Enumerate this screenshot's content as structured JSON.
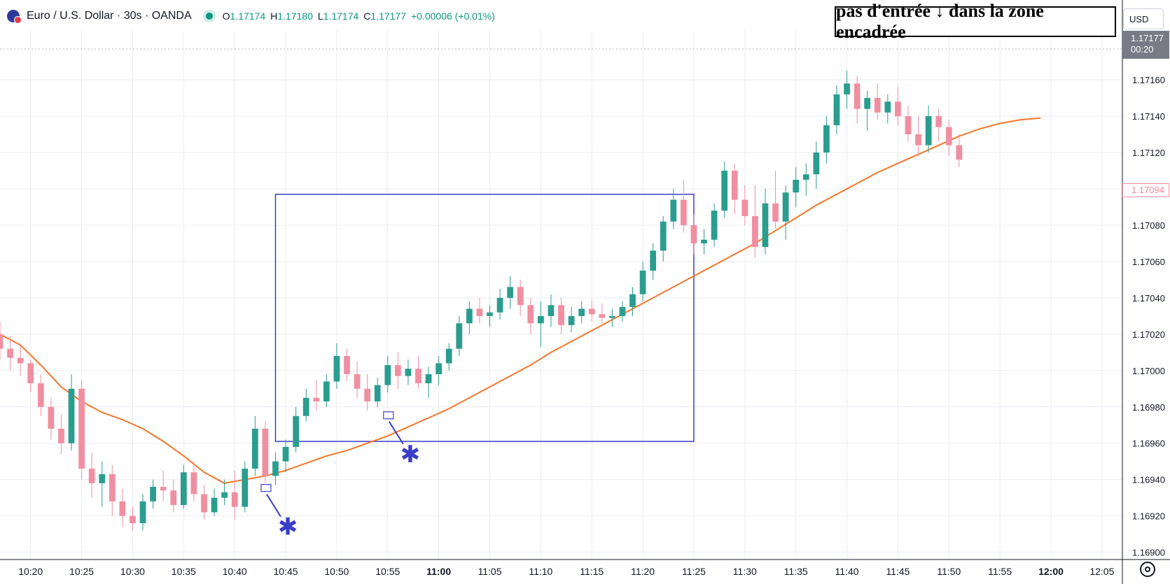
{
  "header": {
    "symbol_icon": "eur-usd-flag-icon",
    "title": "Euro / U.S. Dollar · 30s · OANDA",
    "status_icon": "market-open-dot-icon",
    "open_label": "O",
    "open": "1.17174",
    "high_label": "H",
    "high": "1.17180",
    "low_label": "L",
    "low": "1.17174",
    "close_label": "C",
    "close": "1.17177",
    "change": "+0.00006 (+0.01%)"
  },
  "annotation_text": "pas d'entrée ↓ dans la zone encadrée",
  "currency_button": "USD",
  "price_badge": {
    "price": "1.17177",
    "countdown": "00:20"
  },
  "last_price_badge": "1.17094",
  "settings_icon": "chart-settings-icon",
  "colors": {
    "up": "#2a9d8f",
    "down": "#f08fa0",
    "ma": "#f4772b",
    "zone": "#3a3fc8",
    "grid": "#e9ecf2"
  },
  "chart_data": {
    "type": "candlestick",
    "title": "",
    "y_ticks": [
      "1.17160",
      "1.17140",
      "1.17120",
      "1.17100",
      "1.17080",
      "1.17060",
      "1.17040",
      "1.17020",
      "1.17000",
      "1.16980",
      "1.16960",
      "1.16940",
      "1.16920",
      "1.16900"
    ],
    "x_ticks": [
      "10:20",
      "10:25",
      "10:30",
      "10:35",
      "10:40",
      "10:45",
      "10:50",
      "10:55",
      "11:00",
      "11:05",
      "11:10",
      "11:15",
      "11:20",
      "11:25",
      "11:30",
      "11:35",
      "11:40",
      "11:45",
      "11:50",
      "11:55",
      "12:00",
      "12:05"
    ],
    "bold_ticks": [
      "11:00",
      "12:00"
    ],
    "ylim": [
      1.16896,
      1.17187
    ],
    "xlim_minutes_from_10_17": [
      0,
      110
    ],
    "grid": true,
    "series": [
      {
        "name": "EUR/USD",
        "type": "candlestick",
        "points": [
          [
            "10:17",
            1.1702,
            1.17027,
            1.17006,
            1.17012
          ],
          [
            "10:18",
            1.17012,
            1.17019,
            1.17,
            1.17007
          ],
          [
            "10:19",
            1.17007,
            1.17015,
            1.16997,
            1.17004
          ],
          [
            "10:20",
            1.17004,
            1.17006,
            1.16988,
            1.16993
          ],
          [
            "10:21",
            1.16993,
            1.16998,
            1.16975,
            1.1698
          ],
          [
            "10:22",
            1.1698,
            1.16985,
            1.16962,
            1.16968
          ],
          [
            "10:23",
            1.16968,
            1.16976,
            1.16954,
            1.1696
          ],
          [
            "10:24",
            1.1696,
            1.16998,
            1.16956,
            1.1699
          ],
          [
            "10:25",
            1.1699,
            1.16995,
            1.1694,
            1.16946
          ],
          [
            "10:26",
            1.16946,
            1.16955,
            1.1693,
            1.16938
          ],
          [
            "10:27",
            1.16938,
            1.1695,
            1.16925,
            1.16943
          ],
          [
            "10:28",
            1.16943,
            1.16948,
            1.1692,
            1.16928
          ],
          [
            "10:29",
            1.16928,
            1.16935,
            1.16914,
            1.1692
          ],
          [
            "10:30",
            1.1692,
            1.16925,
            1.16912,
            1.16916
          ],
          [
            "10:31",
            1.16916,
            1.16932,
            1.16912,
            1.16928
          ],
          [
            "10:32",
            1.16928,
            1.1694,
            1.16924,
            1.16936
          ],
          [
            "10:33",
            1.16936,
            1.16945,
            1.16928,
            1.16934
          ],
          [
            "10:34",
            1.16934,
            1.1694,
            1.16922,
            1.16926
          ],
          [
            "10:35",
            1.16926,
            1.16948,
            1.16924,
            1.16944
          ],
          [
            "10:36",
            1.16944,
            1.1695,
            1.16928,
            1.16932
          ],
          [
            "10:37",
            1.16932,
            1.16937,
            1.16918,
            1.16922
          ],
          [
            "10:38",
            1.16922,
            1.16935,
            1.1692,
            1.1693
          ],
          [
            "10:39",
            1.1693,
            1.1694,
            1.16926,
            1.16933
          ],
          [
            "10:40",
            1.16933,
            1.16945,
            1.16918,
            1.16925
          ],
          [
            "10:41",
            1.16925,
            1.1695,
            1.16922,
            1.16946
          ],
          [
            "10:42",
            1.16946,
            1.16975,
            1.16942,
            1.16968
          ],
          [
            "10:43",
            1.16968,
            1.16972,
            1.16938,
            1.16942
          ],
          [
            "10:44",
            1.16942,
            1.16955,
            1.16937,
            1.1695
          ],
          [
            "10:45",
            1.1695,
            1.16962,
            1.16944,
            1.16958
          ],
          [
            "10:46",
            1.16958,
            1.1698,
            1.16955,
            1.16975
          ],
          [
            "10:47",
            1.16975,
            1.1699,
            1.16972,
            1.16985
          ],
          [
            "10:48",
            1.16985,
            1.16995,
            1.16978,
            1.16983
          ],
          [
            "10:49",
            1.16983,
            1.16998,
            1.1698,
            1.16994
          ],
          [
            "10:50",
            1.16994,
            1.17015,
            1.1699,
            1.17008
          ],
          [
            "10:51",
            1.17008,
            1.17012,
            1.16994,
            1.16998
          ],
          [
            "10:52",
            1.16998,
            1.17005,
            1.16985,
            1.1699
          ],
          [
            "10:53",
            1.1699,
            1.16998,
            1.16978,
            1.16983
          ],
          [
            "10:54",
            1.16983,
            1.16996,
            1.1698,
            1.16992
          ],
          [
            "10:55",
            1.16992,
            1.17008,
            1.16988,
            1.17003
          ],
          [
            "10:56",
            1.17003,
            1.1701,
            1.1699,
            1.16997
          ],
          [
            "10:57",
            1.16997,
            1.17006,
            1.16992,
            1.17001
          ],
          [
            "10:58",
            1.17001,
            1.17008,
            1.1699,
            1.16993
          ],
          [
            "10:59",
            1.16993,
            1.17002,
            1.16985,
            1.16998
          ],
          [
            "11:00",
            1.16998,
            1.17008,
            1.16992,
            1.17004
          ],
          [
            "11:01",
            1.17004,
            1.17015,
            1.17,
            1.17012
          ],
          [
            "11:02",
            1.17012,
            1.1703,
            1.17008,
            1.17026
          ],
          [
            "11:03",
            1.17026,
            1.17038,
            1.1702,
            1.17034
          ],
          [
            "11:04",
            1.17034,
            1.1704,
            1.17026,
            1.1703
          ],
          [
            "11:05",
            1.1703,
            1.17036,
            1.17024,
            1.17032
          ],
          [
            "11:06",
            1.17032,
            1.17045,
            1.17028,
            1.1704
          ],
          [
            "11:07",
            1.1704,
            1.17052,
            1.17034,
            1.17046
          ],
          [
            "11:08",
            1.17046,
            1.1705,
            1.1703,
            1.17036
          ],
          [
            "11:09",
            1.17036,
            1.1704,
            1.1702,
            1.17026
          ],
          [
            "11:10",
            1.17026,
            1.17038,
            1.17013,
            1.1703
          ],
          [
            "11:11",
            1.1703,
            1.17042,
            1.17024,
            1.17036
          ],
          [
            "11:12",
            1.17036,
            1.1704,
            1.1702,
            1.17025
          ],
          [
            "11:13",
            1.17025,
            1.17035,
            1.17021,
            1.1703
          ],
          [
            "11:14",
            1.1703,
            1.17038,
            1.17026,
            1.17034
          ],
          [
            "11:15",
            1.17034,
            1.17039,
            1.17027,
            1.17031
          ],
          [
            "11:16",
            1.17031,
            1.17037,
            1.17026,
            1.17029
          ],
          [
            "11:17",
            1.17029,
            1.17034,
            1.17024,
            1.1703
          ],
          [
            "11:18",
            1.1703,
            1.17038,
            1.17027,
            1.17035
          ],
          [
            "11:19",
            1.17035,
            1.17046,
            1.1703,
            1.17042
          ],
          [
            "11:20",
            1.17042,
            1.1706,
            1.17038,
            1.17055
          ],
          [
            "11:21",
            1.17055,
            1.1707,
            1.1705,
            1.17066
          ],
          [
            "11:22",
            1.17066,
            1.17085,
            1.1706,
            1.17082
          ],
          [
            "11:23",
            1.17082,
            1.171,
            1.17078,
            1.17094
          ],
          [
            "11:24",
            1.17094,
            1.17105,
            1.17076,
            1.1708
          ],
          [
            "11:25",
            1.1708,
            1.17086,
            1.17064,
            1.1707
          ],
          [
            "11:26",
            1.1707,
            1.17078,
            1.17064,
            1.17072
          ],
          [
            "11:27",
            1.17072,
            1.17092,
            1.17068,
            1.17088
          ],
          [
            "11:28",
            1.17088,
            1.17115,
            1.17084,
            1.1711
          ],
          [
            "11:29",
            1.1711,
            1.17114,
            1.17086,
            1.17094
          ],
          [
            "11:30",
            1.17094,
            1.17102,
            1.1708,
            1.17085
          ],
          [
            "11:31",
            1.17085,
            1.17102,
            1.17062,
            1.17068
          ],
          [
            "11:32",
            1.17068,
            1.171,
            1.17064,
            1.17092
          ],
          [
            "11:33",
            1.17092,
            1.1711,
            1.17078,
            1.17082
          ],
          [
            "11:34",
            1.17082,
            1.17102,
            1.17072,
            1.17098
          ],
          [
            "11:35",
            1.17098,
            1.17112,
            1.1709,
            1.17105
          ],
          [
            "11:36",
            1.17105,
            1.17114,
            1.17096,
            1.17108
          ],
          [
            "11:37",
            1.17108,
            1.17126,
            1.171,
            1.1712
          ],
          [
            "11:38",
            1.1712,
            1.1714,
            1.17114,
            1.17135
          ],
          [
            "11:39",
            1.17135,
            1.17157,
            1.1713,
            1.17152
          ],
          [
            "11:40",
            1.17152,
            1.17165,
            1.17144,
            1.17158
          ],
          [
            "11:41",
            1.17158,
            1.17162,
            1.17136,
            1.17144
          ],
          [
            "11:42",
            1.17144,
            1.17154,
            1.17132,
            1.1715
          ],
          [
            "11:43",
            1.1715,
            1.17158,
            1.17138,
            1.17142
          ],
          [
            "11:44",
            1.17142,
            1.17152,
            1.17136,
            1.17148
          ],
          [
            "11:45",
            1.17148,
            1.17156,
            1.17135,
            1.1714
          ],
          [
            "11:46",
            1.1714,
            1.17146,
            1.17126,
            1.1713
          ],
          [
            "11:47",
            1.1713,
            1.1714,
            1.17118,
            1.17124
          ],
          [
            "11:48",
            1.17124,
            1.17146,
            1.1712,
            1.1714
          ],
          [
            "11:49",
            1.1714,
            1.17144,
            1.17126,
            1.17134
          ],
          [
            "11:50",
            1.17134,
            1.17138,
            1.17118,
            1.17124
          ],
          [
            "11:51",
            1.17124,
            1.1713,
            1.17112,
            1.17116
          ]
        ]
      },
      {
        "name": "MA",
        "type": "line",
        "points": [
          [
            "10:17",
            1.1702
          ],
          [
            "10:19",
            1.17014
          ],
          [
            "10:21",
            1.17003
          ],
          [
            "10:23",
            1.16991
          ],
          [
            "10:25",
            1.16983
          ],
          [
            "10:27",
            1.16977
          ],
          [
            "10:29",
            1.16973
          ],
          [
            "10:31",
            1.16968
          ],
          [
            "10:33",
            1.16961
          ],
          [
            "10:35",
            1.16953
          ],
          [
            "10:37",
            1.16944
          ],
          [
            "10:39",
            1.16938
          ],
          [
            "10:41",
            1.1694
          ],
          [
            "10:43",
            1.16942
          ],
          [
            "10:45",
            1.16945
          ],
          [
            "10:47",
            1.16949
          ],
          [
            "10:49",
            1.16953
          ],
          [
            "10:51",
            1.16956
          ],
          [
            "10:53",
            1.1696
          ],
          [
            "10:55",
            1.16964
          ],
          [
            "10:57",
            1.16969
          ],
          [
            "10:59",
            1.16974
          ],
          [
            "11:01",
            1.16979
          ],
          [
            "11:03",
            1.16985
          ],
          [
            "11:05",
            1.16991
          ],
          [
            "11:07",
            1.16997
          ],
          [
            "11:09",
            1.17003
          ],
          [
            "11:11",
            1.1701
          ],
          [
            "11:13",
            1.17016
          ],
          [
            "11:15",
            1.17022
          ],
          [
            "11:17",
            1.17028
          ],
          [
            "11:19",
            1.17034
          ],
          [
            "11:21",
            1.1704
          ],
          [
            "11:23",
            1.17046
          ],
          [
            "11:25",
            1.17052
          ],
          [
            "11:27",
            1.17058
          ],
          [
            "11:29",
            1.17064
          ],
          [
            "11:31",
            1.1707
          ],
          [
            "11:33",
            1.17077
          ],
          [
            "11:35",
            1.17084
          ],
          [
            "11:37",
            1.17091
          ],
          [
            "11:39",
            1.17097
          ],
          [
            "11:41",
            1.17103
          ],
          [
            "11:43",
            1.17109
          ],
          [
            "11:45",
            1.17114
          ],
          [
            "11:47",
            1.17119
          ],
          [
            "11:49",
            1.17124
          ],
          [
            "11:51",
            1.17129
          ],
          [
            "11:53",
            1.17133
          ],
          [
            "11:55",
            1.17136
          ],
          [
            "11:57",
            1.17138
          ],
          [
            "11:59",
            1.17139
          ]
        ]
      }
    ],
    "zone": {
      "x_start": "10:44",
      "x_end": "11:25",
      "y_high": 1.17097,
      "y_low": 1.16961
    },
    "markers": [
      {
        "x": "10:43",
        "y": 1.16935,
        "symbol": "✱"
      },
      {
        "x": "10:55",
        "y": 1.16975,
        "symbol": "✱"
      }
    ]
  }
}
